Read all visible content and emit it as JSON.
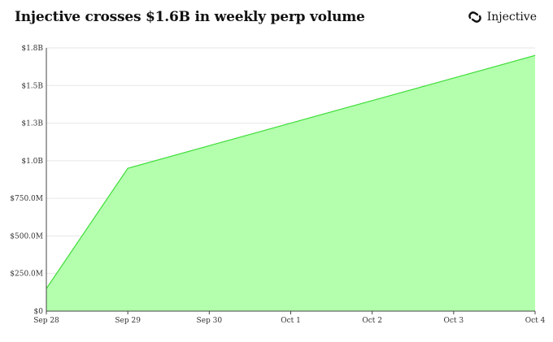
{
  "header": {
    "title": "Injective crosses $1.6B in weekly perp volume",
    "brand_name": "Injective",
    "brand_icon": "injective-logo-icon"
  },
  "colors": {
    "area_fill": "#b3ffad",
    "area_line": "#3fdc3a",
    "grid": "#e6e6e6",
    "axis": "#444444"
  },
  "chart_data": {
    "type": "area",
    "title": "Injective crosses $1.6B in weekly perp volume",
    "xlabel": "",
    "ylabel": "",
    "x": [
      "Sep 28",
      "Sep 29",
      "Sep 30",
      "Oct 1",
      "Oct 2",
      "Oct 3",
      "Oct 4"
    ],
    "values": [
      150000000,
      950000000,
      1100000000,
      1250000000,
      1400000000,
      1550000000,
      1700000000
    ],
    "ylim": [
      0,
      1750000000
    ],
    "yticks": [
      0,
      250000000,
      500000000,
      750000000,
      1000000000,
      1250000000,
      1500000000,
      1750000000
    ],
    "ytick_labels": [
      "$0",
      "$250.0M",
      "$500.0M",
      "$750.0M",
      "$1.0B",
      "$1.3B",
      "$1.5B",
      "$1.8B"
    ],
    "grid": true,
    "legend": "none"
  }
}
